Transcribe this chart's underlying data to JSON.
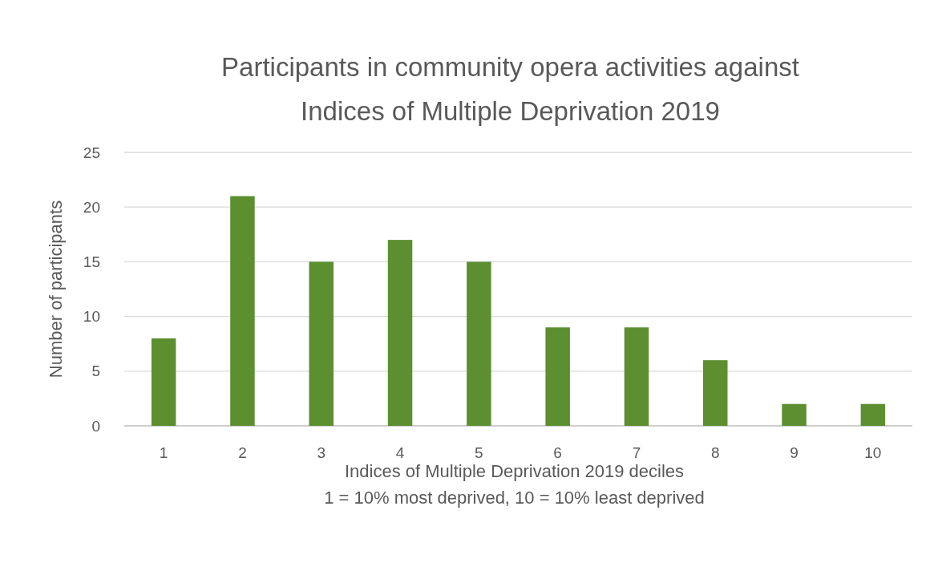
{
  "chart_data": {
    "type": "bar",
    "title": "Participants in community opera activities against Indices of Multiple Deprivation 2019",
    "xlabel": "Indices of Multiple Deprivation 2019 deciles\n1 = 10% most deprived, 10 = 10% least deprived",
    "ylabel": "Number of participants",
    "categories": [
      "1",
      "2",
      "3",
      "4",
      "5",
      "6",
      "7",
      "8",
      "9",
      "10"
    ],
    "values": [
      8,
      21,
      15,
      17,
      15,
      9,
      9,
      6,
      2,
      2
    ],
    "color": "#5b8f2f",
    "ylim": [
      0,
      25
    ],
    "yticks": [
      0,
      5,
      10,
      15,
      20,
      25
    ],
    "grid": "y"
  }
}
